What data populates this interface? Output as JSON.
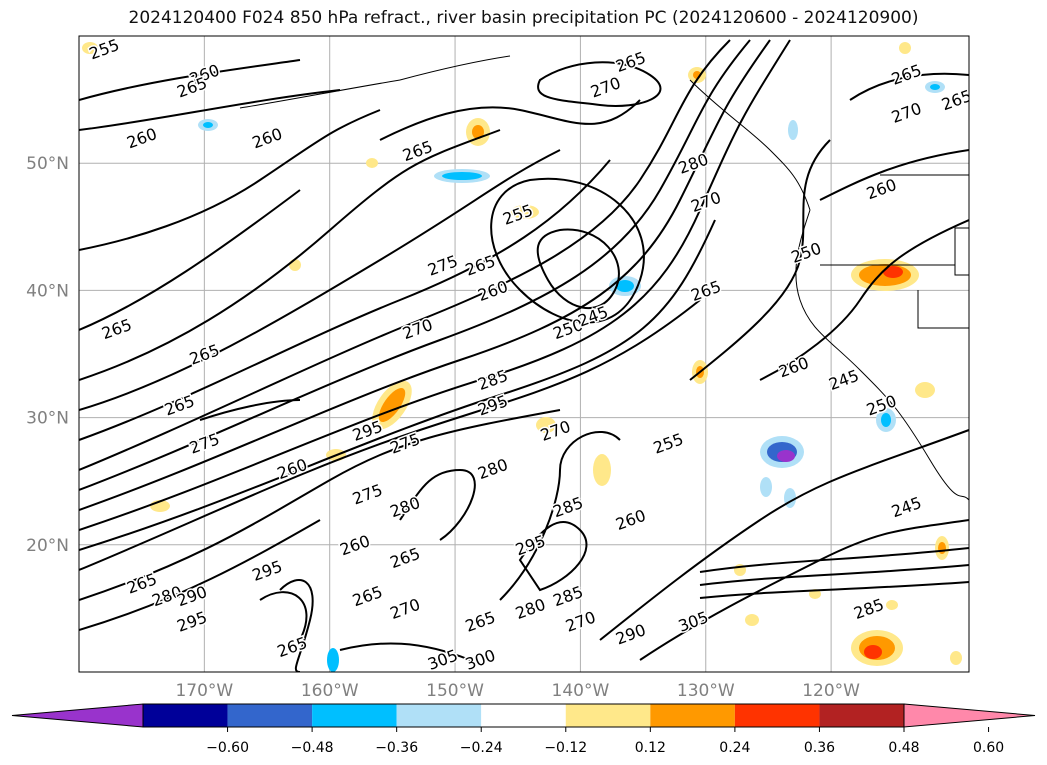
{
  "title": "2024120400 F024 850 hPa refract., river basin precipitation PC (2024120600 - 2024120900)",
  "map": {
    "lon_range": [
      -180,
      -109
    ],
    "lat_range": [
      10,
      60
    ],
    "lon_ticks": [
      {
        "value": -170,
        "label": "170°W"
      },
      {
        "value": -160,
        "label": "160°W"
      },
      {
        "value": -150,
        "label": "150°W"
      },
      {
        "value": -140,
        "label": "140°W"
      },
      {
        "value": -130,
        "label": "130°W"
      },
      {
        "value": -120,
        "label": "120°W"
      }
    ],
    "lat_ticks": [
      {
        "value": 20,
        "label": "20°N"
      },
      {
        "value": 30,
        "label": "30°N"
      },
      {
        "value": 40,
        "label": "40°N"
      },
      {
        "value": 50,
        "label": "50°N"
      }
    ],
    "gridlines": true,
    "contour_labels": [
      {
        "text": "255",
        "lon": -178,
        "lat": 59
      },
      {
        "text": "260",
        "lon": -170,
        "lat": 57
      },
      {
        "text": "265",
        "lon": -171,
        "lat": 56
      },
      {
        "text": "260",
        "lon": -175,
        "lat": 52
      },
      {
        "text": "260",
        "lon": -165,
        "lat": 52
      },
      {
        "text": "265",
        "lon": -153,
        "lat": 51
      },
      {
        "text": "270",
        "lon": -138,
        "lat": 56
      },
      {
        "text": "265",
        "lon": -136,
        "lat": 58
      },
      {
        "text": "265",
        "lon": -114,
        "lat": 57
      },
      {
        "text": "270",
        "lon": -114,
        "lat": 54
      },
      {
        "text": "265",
        "lon": -110,
        "lat": 55
      },
      {
        "text": "260",
        "lon": -116,
        "lat": 48
      },
      {
        "text": "280",
        "lon": -131,
        "lat": 50
      },
      {
        "text": "270",
        "lon": -130,
        "lat": 47
      },
      {
        "text": "250",
        "lon": -122,
        "lat": 43
      },
      {
        "text": "255",
        "lon": -145,
        "lat": 46
      },
      {
        "text": "265",
        "lon": -148,
        "lat": 42
      },
      {
        "text": "275",
        "lon": -151,
        "lat": 42
      },
      {
        "text": "260",
        "lon": -147,
        "lat": 40
      },
      {
        "text": "270",
        "lon": -153,
        "lat": 37
      },
      {
        "text": "250",
        "lon": -141,
        "lat": 37
      },
      {
        "text": "245",
        "lon": -139,
        "lat": 38
      },
      {
        "text": "265",
        "lon": -130,
        "lat": 40
      },
      {
        "text": "265",
        "lon": -177,
        "lat": 37
      },
      {
        "text": "265",
        "lon": -170,
        "lat": 35
      },
      {
        "text": "265",
        "lon": -172,
        "lat": 31
      },
      {
        "text": "275",
        "lon": -170,
        "lat": 28
      },
      {
        "text": "285",
        "lon": -147,
        "lat": 33
      },
      {
        "text": "295",
        "lon": -147,
        "lat": 31
      },
      {
        "text": "260",
        "lon": -123,
        "lat": 34
      },
      {
        "text": "245",
        "lon": -119,
        "lat": 33
      },
      {
        "text": "250",
        "lon": -116,
        "lat": 31
      },
      {
        "text": "295",
        "lon": -157,
        "lat": 29
      },
      {
        "text": "275",
        "lon": -154,
        "lat": 28
      },
      {
        "text": "270",
        "lon": -142,
        "lat": 29
      },
      {
        "text": "255",
        "lon": -133,
        "lat": 28
      },
      {
        "text": "260",
        "lon": -163,
        "lat": 26
      },
      {
        "text": "280",
        "lon": -147,
        "lat": 26
      },
      {
        "text": "275",
        "lon": -157,
        "lat": 24
      },
      {
        "text": "280",
        "lon": -154,
        "lat": 23
      },
      {
        "text": "285",
        "lon": -141,
        "lat": 23
      },
      {
        "text": "260",
        "lon": -136,
        "lat": 22
      },
      {
        "text": "295",
        "lon": -144,
        "lat": 20
      },
      {
        "text": "245",
        "lon": -114,
        "lat": 23
      },
      {
        "text": "260",
        "lon": -158,
        "lat": 20
      },
      {
        "text": "265",
        "lon": -154,
        "lat": 19
      },
      {
        "text": "295",
        "lon": -165,
        "lat": 18
      },
      {
        "text": "265",
        "lon": -175,
        "lat": 17
      },
      {
        "text": "280",
        "lon": -173,
        "lat": 16
      },
      {
        "text": "290",
        "lon": -171,
        "lat": 16
      },
      {
        "text": "295",
        "lon": -171,
        "lat": 14
      },
      {
        "text": "265",
        "lon": -157,
        "lat": 16
      },
      {
        "text": "270",
        "lon": -154,
        "lat": 15
      },
      {
        "text": "285",
        "lon": -141,
        "lat": 16
      },
      {
        "text": "280",
        "lon": -144,
        "lat": 15
      },
      {
        "text": "270",
        "lon": -140,
        "lat": 14
      },
      {
        "text": "265",
        "lon": -148,
        "lat": 14
      },
      {
        "text": "305",
        "lon": -131,
        "lat": 14
      },
      {
        "text": "305",
        "lon": -151,
        "lat": 11
      },
      {
        "text": "300",
        "lon": -148,
        "lat": 11
      },
      {
        "text": "290",
        "lon": -136,
        "lat": 13
      },
      {
        "text": "285",
        "lon": -117,
        "lat": 15
      },
      {
        "text": "265",
        "lon": -163,
        "lat": 12
      }
    ]
  },
  "colorbar": {
    "ticks": [
      "−0.60",
      "−0.48",
      "−0.36",
      "−0.24",
      "−0.12",
      "0.12",
      "0.24",
      "0.36",
      "0.48",
      "0.60"
    ],
    "colors": [
      "#9933cc",
      "#000099",
      "#3366cc",
      "#00bfff",
      "#b0e0f7",
      "#ffffff",
      "#ffe88a",
      "#ff9900",
      "#ff3300",
      "#b22222",
      "#ff88aa"
    ]
  }
}
